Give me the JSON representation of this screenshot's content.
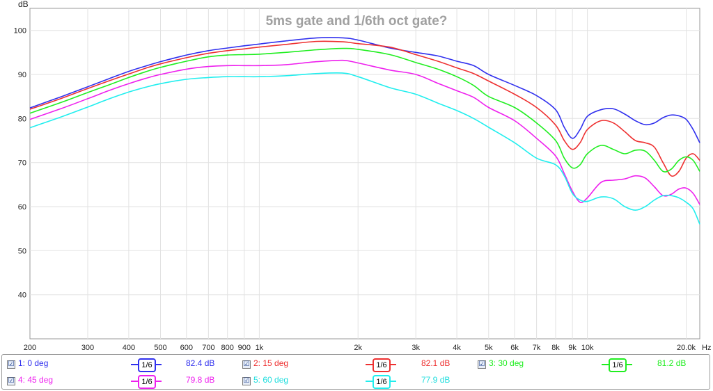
{
  "chart_data": {
    "type": "line",
    "title": "5ms gate and 1/6th oct gate?",
    "ylabel": "dB",
    "xlabel": "Hz",
    "x_scale": "log",
    "xlim": [
      200,
      22000
    ],
    "ylim": [
      30,
      105
    ],
    "grid": true,
    "y_ticks": [
      40,
      50,
      60,
      70,
      80,
      90,
      100
    ],
    "x_ticks": [
      {
        "v": 200,
        "label": "200"
      },
      {
        "v": 300,
        "label": "300"
      },
      {
        "v": 400,
        "label": "400"
      },
      {
        "v": 500,
        "label": "500"
      },
      {
        "v": 600,
        "label": "600"
      },
      {
        "v": 700,
        "label": "700"
      },
      {
        "v": 800,
        "label": "800"
      },
      {
        "v": 900,
        "label": "900"
      },
      {
        "v": 1000,
        "label": "1k"
      },
      {
        "v": 2000,
        "label": "2k"
      },
      {
        "v": 3000,
        "label": "3k"
      },
      {
        "v": 4000,
        "label": "4k"
      },
      {
        "v": 5000,
        "label": "5k"
      },
      {
        "v": 6000,
        "label": "6k"
      },
      {
        "v": 7000,
        "label": "7k"
      },
      {
        "v": 8000,
        "label": "8k"
      },
      {
        "v": 9000,
        "label": "9k"
      },
      {
        "v": 10000,
        "label": "10k"
      },
      {
        "v": 20000,
        "label": "20.0k"
      }
    ],
    "x": [
      200,
      250,
      300,
      350,
      400,
      450,
      500,
      600,
      700,
      800,
      900,
      1000,
      1200,
      1500,
      1800,
      2000,
      2500,
      3000,
      3500,
      4000,
      4500,
      5000,
      6000,
      7000,
      8000,
      8500,
      9000,
      9500,
      10000,
      11000,
      12000,
      13000,
      14000,
      15000,
      16000,
      17000,
      18000,
      19000,
      20000,
      21000,
      22000
    ],
    "series": [
      {
        "name": "1: 0 deg",
        "color": "#3030ee",
        "values": [
          82.4,
          85.0,
          87.2,
          89.1,
          90.7,
          91.9,
          92.9,
          94.4,
          95.4,
          96.0,
          96.5,
          96.9,
          97.6,
          98.3,
          98.3,
          97.8,
          96.0,
          95.0,
          94.2,
          93.0,
          92.0,
          90.0,
          87.5,
          85.2,
          82.0,
          78.0,
          75.5,
          77.5,
          80.5,
          82.0,
          82.2,
          81.0,
          79.5,
          78.6,
          79.0,
          80.2,
          80.8,
          80.6,
          79.8,
          77.5,
          74.5
        ]
      },
      {
        "name": "2: 15 deg",
        "color": "#ee3030",
        "values": [
          82.1,
          84.6,
          86.8,
          88.6,
          90.1,
          91.4,
          92.4,
          93.8,
          94.8,
          95.4,
          95.8,
          96.2,
          96.8,
          97.5,
          97.4,
          97.0,
          96.2,
          94.5,
          93.0,
          91.5,
          90.2,
          88.5,
          85.5,
          82.5,
          78.5,
          75.0,
          73.0,
          74.5,
          77.5,
          79.5,
          79.0,
          77.0,
          75.0,
          74.5,
          73.5,
          70.0,
          67.0,
          68.0,
          71.0,
          72.0,
          70.5
        ]
      },
      {
        "name": "3: 30 deg",
        "color": "#20ee20",
        "values": [
          81.2,
          83.7,
          85.9,
          87.7,
          89.3,
          90.6,
          91.6,
          93.0,
          94.0,
          94.4,
          94.5,
          94.6,
          95.0,
          95.6,
          95.9,
          95.7,
          94.5,
          92.7,
          91.2,
          89.5,
          87.5,
          85.0,
          82.5,
          79.0,
          75.0,
          71.0,
          68.8,
          69.5,
          72.0,
          73.9,
          73.0,
          72.0,
          72.8,
          72.6,
          70.5,
          68.0,
          68.5,
          70.5,
          71.3,
          70.5,
          68.0
        ]
      },
      {
        "name": "4: 45 deg",
        "color": "#ee20ee",
        "values": [
          79.8,
          82.3,
          84.5,
          86.4,
          87.9,
          89.1,
          90.0,
          91.2,
          91.8,
          92.0,
          92.0,
          92.0,
          92.2,
          92.9,
          93.2,
          92.6,
          91.0,
          90.0,
          88.0,
          86.3,
          84.8,
          82.5,
          79.5,
          75.5,
          71.5,
          67.5,
          63.5,
          61.0,
          62.0,
          65.5,
          66.0,
          66.3,
          67.0,
          66.5,
          64.5,
          62.5,
          62.8,
          64.0,
          64.2,
          63.0,
          60.5
        ]
      },
      {
        "name": "5: 60 deg",
        "color": "#20eeee",
        "values": [
          77.9,
          80.4,
          82.6,
          84.5,
          86.0,
          87.1,
          87.9,
          88.9,
          89.3,
          89.5,
          89.5,
          89.5,
          89.7,
          90.2,
          90.3,
          89.5,
          87.0,
          85.5,
          83.5,
          81.8,
          80.0,
          78.0,
          74.5,
          71.0,
          69.5,
          67.0,
          63.0,
          61.5,
          61.2,
          62.2,
          61.8,
          60.0,
          59.2,
          60.0,
          61.5,
          62.5,
          62.5,
          62.0,
          61.0,
          59.5,
          56.0
        ]
      }
    ]
  },
  "legend": {
    "smoothing_label": "1/6",
    "entries": [
      {
        "label": "1: 0 deg",
        "value": "82.4 dB",
        "color": "#3030ee",
        "checked": true
      },
      {
        "label": "2: 15 deg",
        "value": "82.1 dB",
        "color": "#ee3030",
        "checked": true
      },
      {
        "label": "3: 30 deg",
        "value": "81.2 dB",
        "color": "#20ee20",
        "checked": true
      },
      {
        "label": "4: 45 deg",
        "value": "79.8 dB",
        "color": "#ee20ee",
        "checked": true
      },
      {
        "label": "5: 60 deg",
        "value": "77.9 dB",
        "color": "#20eeee",
        "checked": true
      }
    ],
    "checkbox_glyph": "☑"
  }
}
